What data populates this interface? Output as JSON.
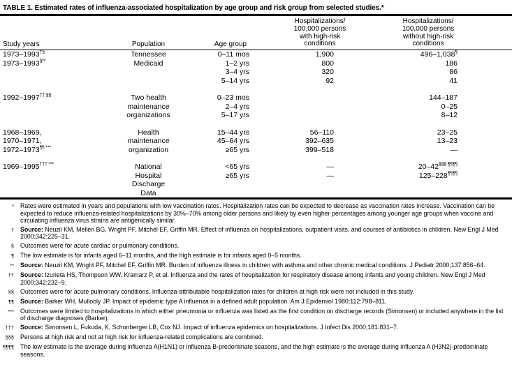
{
  "title": "TABLE 1. Estimated rates of influenza-associated hospitalization by age group and risk group from selected studies.*",
  "table": {
    "headers": {
      "study_years": "Study years",
      "population": "Population",
      "age_group": "Age group",
      "col4": [
        "Hospitalizations/",
        "100,000 persons",
        "with high-risk",
        "conditions"
      ],
      "col5": [
        "Hospitalizations/",
        "100,000 persons",
        "without high-risk",
        "conditions"
      ]
    },
    "rows": [
      {
        "sy": "1973–1993",
        "sys": "†§",
        "pop": "Tennessee",
        "age": "0–11 mos",
        "hr": "1,900",
        "nhr": "496–1,038",
        "nhrs": "¶"
      },
      {
        "sy": "1973–1993",
        "sys": "§**",
        "pop": "Medicaid",
        "age": "1–2 yrs",
        "hr": "800",
        "nhr": "186",
        "nhrs": ""
      },
      {
        "sy": "",
        "sys": "",
        "pop": "",
        "age": "3–4 yrs",
        "hr": "320",
        "nhr": "86",
        "nhrs": ""
      },
      {
        "sy": "",
        "sys": "",
        "pop": "",
        "age": "5–14 yrs",
        "hr": "92",
        "nhr": "41",
        "nhrs": ""
      },
      {
        "sy": "1992–1997",
        "sys": "†† §§",
        "pop": "Two health",
        "age": "0–23 mos",
        "hr": "",
        "nhr": "144–187",
        "nhrs": ""
      },
      {
        "sy": "",
        "sys": "",
        "pop": "maintenance",
        "age": "2–4 yrs",
        "hr": "",
        "nhr": "0–25",
        "nhrs": ""
      },
      {
        "sy": "",
        "sys": "",
        "pop": "organizations",
        "age": "5–17 yrs",
        "hr": "",
        "nhr": "8–12",
        "nhrs": ""
      },
      {
        "sy": "1968–1969,",
        "sys": "",
        "pop": "Health",
        "age": "15–44 yrs",
        "hr": "56–110",
        "nhr": "23–25",
        "nhrs": ""
      },
      {
        "sy": "1970–1971,",
        "sys": "",
        "pop": "maintenance",
        "age": "45–64 yrs",
        "hr": "392–635",
        "nhr": "13–23",
        "nhrs": ""
      },
      {
        "sy": "1972–1973",
        "sys": "¶¶ ***",
        "pop": "organization",
        "age": "≥65 yrs",
        "hr": "399–518",
        "nhr": "—",
        "nhrs": ""
      },
      {
        "sy": "1969–1995",
        "sys": "††† ***",
        "pop": "National",
        "age": "<65 yrs",
        "hr": "—",
        "nhr": "20–42",
        "nhrs": "§§§ ¶¶¶¶"
      },
      {
        "sy": "",
        "sys": "",
        "pop": "Hospital",
        "age": "≥65 yrs",
        "hr": "—",
        "nhr": "125–228",
        "nhrs": "¶¶¶¶"
      },
      {
        "sy": "",
        "sys": "",
        "pop": "Discharge",
        "age": "",
        "hr": "",
        "nhr": "",
        "nhrs": ""
      },
      {
        "sy": "",
        "sys": "",
        "pop": "Data",
        "age": "",
        "hr": "",
        "nhr": "",
        "nhrs": ""
      }
    ]
  },
  "footnotes": [
    {
      "marker": "*",
      "bold": "",
      "text": "Rates were estimated in years and populations with low vaccination rates. Hospitalization rates can be expected to decrease as vaccination rates increase. Vaccination can be expected to reduce influenza-related hospitalizations by 30%–70% among older persons and likely by even higher percentages among younger age groups when vaccine and circulating influenza virus strains are antigenically similar."
    },
    {
      "marker": "†",
      "bold": "Source:",
      "text": " Neuzil KM, Mellen BG, Wright PF, Mitchel EF, Griffin MR. Effect of influenza on hospitalizations, outpatient visits, and courses of antibiotics in children. New Engl J Med 2000;342:225–31."
    },
    {
      "marker": "§",
      "bold": "",
      "text": "Outcomes were for acute cardiac or pulmonary conditions."
    },
    {
      "marker": "¶",
      "bold": "",
      "text": "The low estimate is for infants aged 6–11 months, and the high estimate is for infants aged 0–5 months."
    },
    {
      "marker": "**",
      "bold": "Source:",
      "text": " Neuzil KM, Wright PF, Mitchel EF, Griffin MR. Burden of influenza illness in children with asthma and other chronic medical conditions. J Pediatr 2000;137:856–64."
    },
    {
      "marker": "††",
      "bold": "Source:",
      "text": " Izurieta HS, Thompson WW, Kramarz P, et al. Influenza and the rates of hospitalization for respiratory disease among infants and young children. New Engl J Med 2000;342:232–9."
    },
    {
      "marker": "§§",
      "bold": "",
      "text": "Outcomes were for acute pulmonary conditions. Influenza-attributable hospitalization rates for children at high risk were not included in this study."
    },
    {
      "marker": "¶¶",
      "bold": "Source:",
      "text": " Barker WH, Mullooly JP. Impact of epidemic type A influenza in a defined adult population. Am J Epidemiol 1980;112:798–811."
    },
    {
      "marker": "***",
      "bold": "",
      "text": "Outcomes were limited to hospitalizations in which either pneumonia or influenza was listed as the first condition on discharge records (Simonsen) or included anywhere in the list of discharge diagnoses (Barker)."
    },
    {
      "marker": "†††",
      "bold": "Source:",
      "text": " Simonsen L, Fukuda, K, Schonberger LB, Cox NJ. Impact of influenza epidemics on hospitalizations. J Infect Dis 2000;181:831–7."
    },
    {
      "marker": "§§§",
      "bold": "",
      "text": "Persons at high risk and not at high risk for influenza-related complications are combined."
    },
    {
      "marker": "¶¶¶¶",
      "bold": "",
      "text": "The low estimate is the average during influenza A(H1N1) or influenza B-predominate seasons, and the high estimate is the average during influenza A (H3N2)-predominate seasons."
    }
  ]
}
